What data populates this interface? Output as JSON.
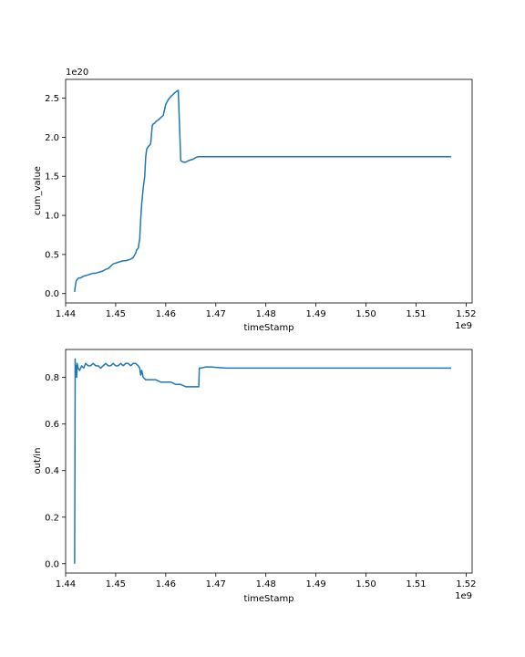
{
  "figure": {
    "background": "#ffffff",
    "line_color": "#1f77b4"
  },
  "chart_data": [
    {
      "type": "line",
      "xlabel": "timeStamp",
      "ylabel": "cum_value",
      "x_offset_text": "1e9",
      "y_offset_text": "1e20",
      "xlim": [
        1.44,
        1.5212
      ],
      "ylim": [
        -0.12,
        2.74
      ],
      "xticks": [
        1.44,
        1.45,
        1.46,
        1.47,
        1.48,
        1.49,
        1.5,
        1.51,
        1.52
      ],
      "xtick_labels": [
        "1.44",
        "1.45",
        "1.46",
        "1.47",
        "1.48",
        "1.49",
        "1.50",
        "1.51",
        "1.52"
      ],
      "yticks": [
        0.0,
        0.5,
        1.0,
        1.5,
        2.0,
        2.5
      ],
      "ytick_labels": [
        "0.0",
        "0.5",
        "1.0",
        "1.5",
        "2.0",
        "2.5"
      ],
      "grid": false,
      "series": [
        {
          "x": [
            1.4418,
            1.4419,
            1.442,
            1.4421,
            1.4423,
            1.4426,
            1.443,
            1.4435,
            1.444,
            1.4445,
            1.445,
            1.4455,
            1.446,
            1.4465,
            1.447,
            1.4475,
            1.448,
            1.4485,
            1.449,
            1.4495,
            1.45,
            1.4505,
            1.451,
            1.4515,
            1.452,
            1.4525,
            1.453,
            1.4535,
            1.454,
            1.4542,
            1.4545,
            1.4548,
            1.455,
            1.4552,
            1.4555,
            1.4558,
            1.456,
            1.4562,
            1.4565,
            1.4568,
            1.457,
            1.4573,
            1.4575,
            1.4578,
            1.458,
            1.4585,
            1.459,
            1.4595,
            1.46,
            1.4605,
            1.461,
            1.4615,
            1.462,
            1.4625,
            1.463,
            1.4635,
            1.464,
            1.4645,
            1.465,
            1.4655,
            1.466,
            1.4664,
            1.4666,
            1.4667,
            1.467,
            1.468,
            1.469,
            1.47,
            1.471,
            1.472,
            1.475,
            1.48,
            1.49,
            1.5,
            1.51,
            1.517
          ],
          "y": [
            0.02,
            0.08,
            0.12,
            0.16,
            0.18,
            0.2,
            0.2,
            0.22,
            0.23,
            0.24,
            0.25,
            0.26,
            0.26,
            0.27,
            0.28,
            0.29,
            0.31,
            0.32,
            0.35,
            0.38,
            0.39,
            0.4,
            0.41,
            0.42,
            0.42,
            0.43,
            0.44,
            0.46,
            0.52,
            0.56,
            0.58,
            0.7,
            0.95,
            1.15,
            1.35,
            1.5,
            1.75,
            1.85,
            1.88,
            1.9,
            1.92,
            2.15,
            2.17,
            2.18,
            2.2,
            2.22,
            2.25,
            2.28,
            2.42,
            2.48,
            2.52,
            2.55,
            2.58,
            2.6,
            1.7,
            1.68,
            1.68,
            1.7,
            1.71,
            1.72,
            1.74,
            1.75,
            1.75,
            1.75,
            1.75,
            1.75,
            1.75,
            1.75,
            1.75,
            1.75,
            1.75,
            1.75,
            1.75,
            1.75,
            1.75,
            1.75
          ]
        }
      ]
    },
    {
      "type": "line",
      "xlabel": "timeStamp",
      "ylabel": "out/in",
      "x_offset_text": "1e9",
      "xlim": [
        1.44,
        1.5212
      ],
      "ylim": [
        -0.04,
        0.92
      ],
      "xticks": [
        1.44,
        1.45,
        1.46,
        1.47,
        1.48,
        1.49,
        1.5,
        1.51,
        1.52
      ],
      "xtick_labels": [
        "1.44",
        "1.45",
        "1.46",
        "1.47",
        "1.48",
        "1.49",
        "1.50",
        "1.51",
        "1.52"
      ],
      "yticks": [
        0.0,
        0.2,
        0.4,
        0.6,
        0.8
      ],
      "ytick_labels": [
        "0.0",
        "0.2",
        "0.4",
        "0.6",
        "0.8"
      ],
      "grid": false,
      "series": [
        {
          "x": [
            1.4418,
            1.4419,
            1.4419,
            1.442,
            1.4421,
            1.4422,
            1.4423,
            1.4425,
            1.4428,
            1.4432,
            1.4436,
            1.444,
            1.4445,
            1.445,
            1.4455,
            1.446,
            1.4465,
            1.447,
            1.4475,
            1.448,
            1.4485,
            1.449,
            1.4495,
            1.45,
            1.4505,
            1.451,
            1.4515,
            1.452,
            1.4525,
            1.453,
            1.4535,
            1.454,
            1.4545,
            1.4548,
            1.455,
            1.4552,
            1.4555,
            1.456,
            1.457,
            1.458,
            1.459,
            1.46,
            1.461,
            1.462,
            1.463,
            1.464,
            1.465,
            1.466,
            1.4666,
            1.4667,
            1.467,
            1.468,
            1.469,
            1.47,
            1.472,
            1.475,
            1.48,
            1.49,
            1.5,
            1.51,
            1.517
          ],
          "y": [
            0.0,
            0.75,
            0.88,
            0.82,
            0.85,
            0.8,
            0.86,
            0.84,
            0.83,
            0.85,
            0.84,
            0.86,
            0.85,
            0.85,
            0.86,
            0.85,
            0.85,
            0.84,
            0.85,
            0.86,
            0.85,
            0.85,
            0.86,
            0.85,
            0.85,
            0.86,
            0.85,
            0.86,
            0.86,
            0.85,
            0.86,
            0.86,
            0.85,
            0.84,
            0.81,
            0.83,
            0.8,
            0.79,
            0.79,
            0.79,
            0.78,
            0.78,
            0.78,
            0.77,
            0.77,
            0.76,
            0.76,
            0.76,
            0.76,
            0.84,
            0.84,
            0.845,
            0.845,
            0.843,
            0.84,
            0.84,
            0.84,
            0.84,
            0.84,
            0.84,
            0.84
          ]
        }
      ]
    }
  ]
}
